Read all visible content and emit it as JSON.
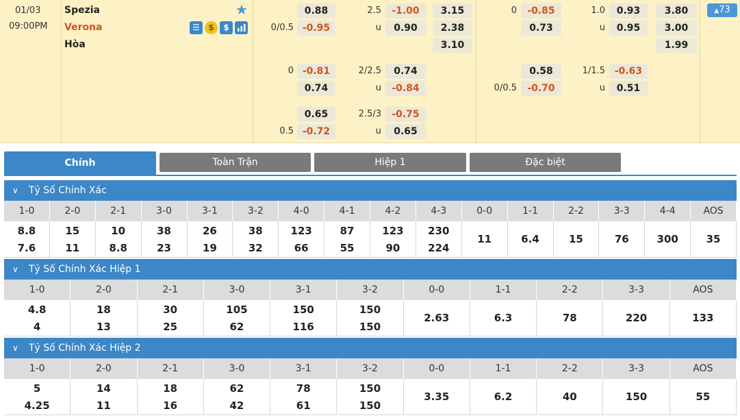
{
  "match": {
    "date": "01/03",
    "time": "09:00PM",
    "home": "Spezia",
    "away": "Verona",
    "draw": "Hòa",
    "more_count": "73",
    "icons": [
      "list-icon",
      "coin-icon",
      "dollar-icon",
      "stats-icon"
    ]
  },
  "odds": {
    "r1": {
      "hcap": "",
      "h1": "0.88",
      "ou": "2.5",
      "o1": "-1.00",
      "x1": "3.15",
      "h1hcap": "0",
      "h1h": "-0.85",
      "h1ou": "1.0",
      "h1o": "0.93",
      "h1x": "3.80"
    },
    "r2": {
      "hcap": "0/0.5",
      "h1": "-0.95",
      "ou": "u",
      "o1": "0.90",
      "x1": "2.38",
      "h1hcap": "",
      "h1h": "0.73",
      "h1ou": "u",
      "h1o": "0.95",
      "h1x": "3.00"
    },
    "r3": {
      "x1": "3.10",
      "h1x": "1.99"
    },
    "r4": {
      "hcap": "0",
      "h1": "-0.81",
      "ou": "2/2.5",
      "o1": "0.74",
      "h1hcap": "",
      "h1h": "0.58",
      "h1ou": "1/1.5",
      "h1o": "-0.63"
    },
    "r5": {
      "hcap": "",
      "h1": "0.74",
      "ou": "u",
      "o1": "-0.84",
      "h1hcap": "0/0.5",
      "h1h": "-0.70",
      "h1ou": "u",
      "h1o": "0.51"
    },
    "r6": {
      "hcap": "",
      "h1": "0.65",
      "ou": "2.5/3",
      "o1": "-0.75"
    },
    "r7": {
      "hcap": "0.5",
      "h1": "-0.72",
      "ou": "u",
      "o1": "0.65"
    }
  },
  "tabs": [
    "Chính",
    "Toàn Trận",
    "Hiệp 1",
    "Đặc biệt"
  ],
  "sections": [
    {
      "title": "Tỷ Số Chính Xác",
      "headers": [
        "1-0",
        "2-0",
        "2-1",
        "3-0",
        "3-1",
        "3-2",
        "4-0",
        "4-1",
        "4-2",
        "4-3",
        "0-0",
        "1-1",
        "2-2",
        "3-3",
        "4-4",
        "AOS"
      ],
      "top": [
        "8.8",
        "15",
        "10",
        "38",
        "26",
        "38",
        "123",
        "87",
        "123",
        "230",
        "",
        "",
        "",
        "",
        "",
        ""
      ],
      "bottom": [
        "7.6",
        "11",
        "8.8",
        "23",
        "19",
        "32",
        "66",
        "55",
        "90",
        "224",
        "",
        "",
        "",
        "",
        "",
        ""
      ],
      "single": [
        "",
        "",
        "",
        "",
        "",
        "",
        "",
        "",
        "",
        "",
        "11",
        "6.4",
        "15",
        "76",
        "300",
        "35"
      ]
    },
    {
      "title": "Tỷ Số Chính Xác Hiệp 1",
      "headers": [
        "1-0",
        "2-0",
        "2-1",
        "3-0",
        "3-1",
        "3-2",
        "0-0",
        "1-1",
        "2-2",
        "3-3",
        "AOS"
      ],
      "top": [
        "4.8",
        "18",
        "30",
        "105",
        "150",
        "150",
        "",
        "",
        "",
        "",
        ""
      ],
      "bottom": [
        "4",
        "13",
        "25",
        "62",
        "116",
        "150",
        "",
        "",
        "",
        "",
        ""
      ],
      "single": [
        "",
        "",
        "",
        "",
        "",
        "",
        "2.63",
        "6.3",
        "78",
        "220",
        "133"
      ]
    },
    {
      "title": "Tỷ Số Chính Xác Hiệp 2",
      "headers": [
        "1-0",
        "2-0",
        "2-1",
        "3-0",
        "3-1",
        "3-2",
        "0-0",
        "1-1",
        "2-2",
        "3-3",
        "AOS"
      ],
      "top": [
        "5",
        "14",
        "18",
        "62",
        "78",
        "150",
        "",
        "",
        "",
        "",
        ""
      ],
      "bottom": [
        "4.25",
        "11",
        "16",
        "42",
        "61",
        "150",
        "",
        "",
        "",
        "",
        ""
      ],
      "single": [
        "",
        "",
        "",
        "",
        "",
        "",
        "3.35",
        "6.2",
        "40",
        "150",
        "55"
      ]
    }
  ],
  "colors": {
    "accent": "#3b87c8",
    "negative": "#d4541c",
    "header_bg": "#fdf2c5"
  }
}
